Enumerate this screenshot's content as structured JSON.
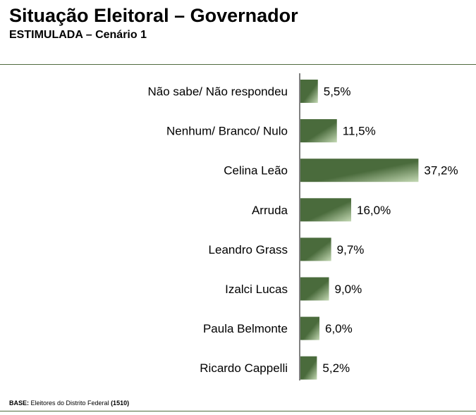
{
  "header": {
    "title": "Situação Eleitoral – Governador",
    "subtitle": "ESTIMULADA – Cenário 1"
  },
  "footer": {
    "base_label": "BASE:",
    "base_text": " Eleitores do Distrito Federal ",
    "base_count": "(1510)"
  },
  "colors": {
    "bar_dark": "#4a6b3c",
    "bar_light": "#c4d9b4",
    "axis": "#000000",
    "rule": "#4f6b3f"
  },
  "chart_data": {
    "type": "bar",
    "orientation": "horizontal",
    "title": "Situação Eleitoral – Governador",
    "subtitle": "ESTIMULADA – Cenário 1",
    "xlabel": "",
    "ylabel": "",
    "xlim": [
      0,
      40
    ],
    "grid": false,
    "legend": "none",
    "categories": [
      "Não sabe/ Não respondeu",
      "Nenhum/ Branco/ Nulo",
      "Celina Leão",
      "Arruda",
      "Leandro Grass",
      "Izalci Lucas",
      "Paula Belmonte",
      "Ricardo Cappelli"
    ],
    "values": [
      5.5,
      11.5,
      37.2,
      16.0,
      9.7,
      9.0,
      6.0,
      5.2
    ],
    "value_labels": [
      "5,5%",
      "11,5%",
      "37,2%",
      "16,0%",
      "9,7%",
      "9,0%",
      "6,0%",
      "5,2%"
    ]
  }
}
